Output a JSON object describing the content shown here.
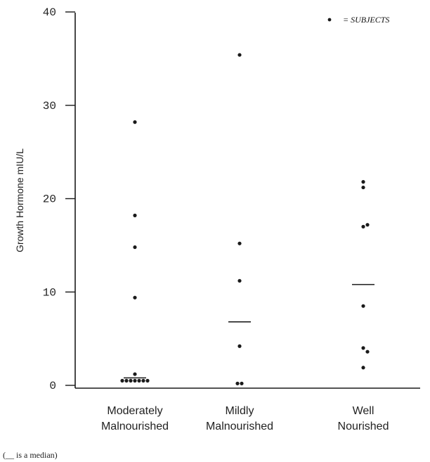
{
  "chart_data": {
    "type": "scatter",
    "ylabel": "Growth Hormone mIU/L",
    "ylim": [
      0,
      40
    ],
    "yticks": [
      0,
      10,
      20,
      30,
      40
    ],
    "categories": [
      {
        "line1": "Moderately",
        "line2": "Malnourished"
      },
      {
        "line1": "Mildly",
        "line2": "Malnourished"
      },
      {
        "line1": "Well",
        "line2": "Nourished"
      }
    ],
    "groups": [
      {
        "points": [
          {
            "offset": 0,
            "y": 28.2
          },
          {
            "offset": 0,
            "y": 18.2
          },
          {
            "offset": 0,
            "y": 14.8
          },
          {
            "offset": 0,
            "y": 9.4
          },
          {
            "offset": 0,
            "y": 1.2
          },
          {
            "offset": -3,
            "y": 0.5
          },
          {
            "offset": -2,
            "y": 0.5
          },
          {
            "offset": -1,
            "y": 0.5
          },
          {
            "offset": 0,
            "y": 0.5
          },
          {
            "offset": 1,
            "y": 0.5
          },
          {
            "offset": 2,
            "y": 0.5
          },
          {
            "offset": 3,
            "y": 0.5
          }
        ],
        "median": 0.8
      },
      {
        "points": [
          {
            "offset": 0,
            "y": 35.4
          },
          {
            "offset": 0,
            "y": 15.2
          },
          {
            "offset": 0,
            "y": 11.2
          },
          {
            "offset": 0,
            "y": 4.2
          },
          {
            "offset": -0.5,
            "y": 0.2
          },
          {
            "offset": 0.5,
            "y": 0.2
          }
        ],
        "median": 6.8
      },
      {
        "points": [
          {
            "offset": 0,
            "y": 21.8
          },
          {
            "offset": 0,
            "y": 21.2
          },
          {
            "offset": 0,
            "y": 17.0
          },
          {
            "offset": 1,
            "y": 17.2
          },
          {
            "offset": 0,
            "y": 8.5
          },
          {
            "offset": 0,
            "y": 4.0
          },
          {
            "offset": 1,
            "y": 3.6
          },
          {
            "offset": 0,
            "y": 1.9
          }
        ],
        "median": 10.8
      }
    ],
    "legend": {
      "text": "= SUBJECTS",
      "position": "top-right"
    },
    "footnote": "(__ is a median)"
  }
}
